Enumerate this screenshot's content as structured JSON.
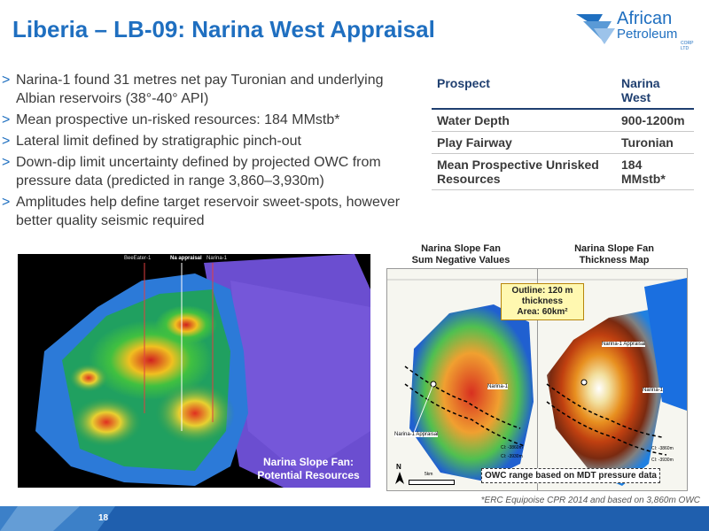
{
  "title": "Liberia – LB-09: Narina West Appraisal",
  "logo": {
    "line1": "African",
    "line2": "Petroleum",
    "suffix": "CORP LTD"
  },
  "bullets": [
    "Narina-1 found 31 metres net pay Turonian and underlying Albian reservoirs (38°-40° API)",
    "Mean prospective un-risked resources: 184 MMstb*",
    "Lateral limit defined by stratigraphic pinch-out",
    "Down-dip limit uncertainty defined by projected OWC from pressure data (predicted in range 3,860–3,930m)",
    "Amplitudes help define target reservoir sweet-spots, however better quality seismic required"
  ],
  "table": {
    "header": [
      "Prospect",
      "Narina West"
    ],
    "rows": [
      [
        "Water Depth",
        "900-1200m"
      ],
      [
        "Play Fairway",
        "Turonian"
      ],
      [
        "Mean Prospective Unrisked Resources",
        "184 MMstb*"
      ]
    ]
  },
  "seismic": {
    "well_labels": [
      "BeeEater-1",
      "Na appraisal",
      "Narina-1"
    ],
    "caption_line1": "Narina Slope Fan:",
    "caption_line2": "Potential Resources"
  },
  "maps": {
    "left_title_line1": "Narina Slope Fan",
    "left_title_line2": "Sum Negative Values",
    "right_title_line1": "Narina Slope Fan",
    "right_title_line2": "Thickness Map",
    "outline_callout": [
      "Outline: 120 m",
      "thickness",
      "Area: 60km²"
    ],
    "owc_callout": "OWC range based on MDT pressure data",
    "left_well_labels": [
      "Narina-1",
      "Narina-1 Appraisal"
    ],
    "right_well_labels": [
      "Narina-1 Appraisal",
      "Narina-1"
    ],
    "contour_labels": [
      "CI: -3860m",
      "CI: -3930m"
    ],
    "north_label": "N",
    "scale_label": "5km"
  },
  "footnote": "*ERC Equipoise CPR 2014 and based on 3,860m OWC",
  "page_number": "18",
  "colors": {
    "title_blue": "#1f6fc0",
    "footer_blue": "#1f5fae",
    "table_header": "#1f3f70"
  }
}
